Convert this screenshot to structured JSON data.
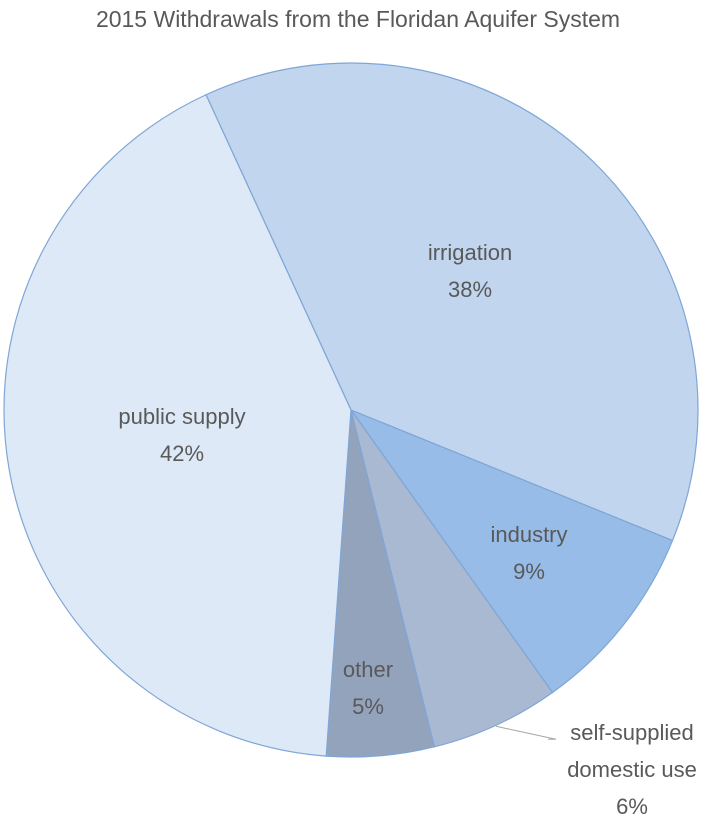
{
  "chart_data": {
    "type": "pie",
    "title": "2015 Withdrawals from the Floridan Aquifer System",
    "slices": [
      {
        "name": "irrigation",
        "value": 38,
        "value_label": "38%",
        "color": "#c1d5ee"
      },
      {
        "name": "industry",
        "value": 9,
        "value_label": "9%",
        "color": "#97bce8"
      },
      {
        "name": "self-supplied domestic use",
        "name_lines": [
          "self-supplied",
          "domestic use"
        ],
        "value": 6,
        "value_label": "6%",
        "color": "#aab9d2"
      },
      {
        "name": "other",
        "value": 5,
        "value_label": "5%",
        "color": "#94a3bc"
      },
      {
        "name": "public supply",
        "value": 42,
        "value_label": "42%",
        "color": "#dee9f7"
      }
    ],
    "start_angle": "upper-left, clockwise",
    "slice_border_color": "#7ea6d6"
  }
}
